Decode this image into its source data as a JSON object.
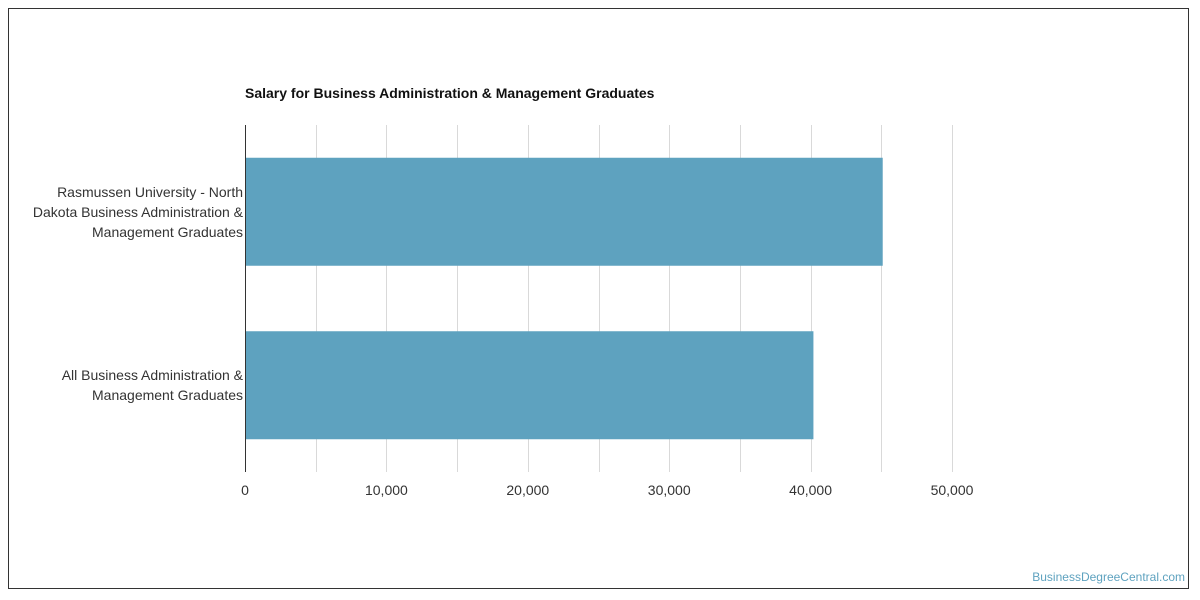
{
  "chart_data": {
    "type": "bar",
    "orientation": "horizontal",
    "title": "Salary for Business Administration & Management Graduates",
    "categories": [
      "Rasmussen University - North Dakota Business Administration & Management Graduates",
      "All Business Administration & Management Graduates"
    ],
    "category_lines": [
      [
        "Rasmussen University - North",
        "Dakota Business Administration &",
        "Management Graduates"
      ],
      [
        "All Business Administration &",
        "Management Graduates"
      ]
    ],
    "values": [
      45100,
      40200
    ],
    "xlim": [
      0,
      50000
    ],
    "xticks": [
      0,
      10000,
      20000,
      30000,
      40000,
      50000
    ],
    "xtick_labels": [
      "0",
      "10,000",
      "20,000",
      "30,000",
      "40,000",
      "50,000"
    ],
    "xlabel": "",
    "ylabel": "",
    "grid": true,
    "bar_color": "#5ea2bf"
  },
  "watermark": "BusinessDegreeCentral.com"
}
